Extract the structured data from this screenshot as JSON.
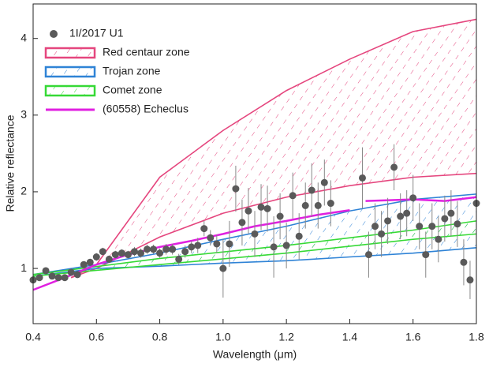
{
  "chart_data": {
    "type": "scatter",
    "xlabel": "Wavelength (μm)",
    "ylabel": "Relative reflectance",
    "xlim": [
      0.4,
      1.8
    ],
    "ylim": [
      0.28,
      4.45
    ],
    "xticks": [
      0.4,
      0.6,
      0.8,
      {
        "value": 1,
        "label": "1.0"
      },
      1.2,
      1.4,
      1.6,
      1.8
    ],
    "yticks": [
      1,
      2,
      3,
      4
    ],
    "legend": "upper left",
    "series": [
      {
        "name": "1I/2017 U1",
        "color": "#5a5a5a",
        "x": [
          0.4,
          0.42,
          0.44,
          0.46,
          0.48,
          0.5,
          0.52,
          0.54,
          0.56,
          0.58,
          0.6,
          0.62,
          0.64,
          0.66,
          0.68,
          0.7,
          0.72,
          0.74,
          0.76,
          0.78,
          0.8,
          0.82,
          0.84,
          0.86,
          0.88,
          0.9,
          0.92,
          0.94,
          0.96,
          0.98,
          1.0,
          1.02,
          1.04,
          1.06,
          1.08,
          1.1,
          1.12,
          1.14,
          1.16,
          1.18,
          1.2,
          1.22,
          1.24,
          1.26,
          1.28,
          1.3,
          1.32,
          1.34,
          1.44,
          1.46,
          1.48,
          1.5,
          1.52,
          1.54,
          1.56,
          1.58,
          1.6,
          1.62,
          1.64,
          1.66,
          1.68,
          1.7,
          1.72,
          1.74,
          1.76,
          1.78,
          1.8
        ],
        "values": [
          0.85,
          0.88,
          0.97,
          0.9,
          0.88,
          0.88,
          0.95,
          0.92,
          1.05,
          1.08,
          1.15,
          1.22,
          1.12,
          1.18,
          1.2,
          1.18,
          1.22,
          1.2,
          1.25,
          1.25,
          1.2,
          1.25,
          1.25,
          1.12,
          1.22,
          1.28,
          1.3,
          1.52,
          1.4,
          1.32,
          1.0,
          1.32,
          2.04,
          1.6,
          1.75,
          1.45,
          1.8,
          1.78,
          1.28,
          1.68,
          1.3,
          1.95,
          1.42,
          1.82,
          2.02,
          1.82,
          2.12,
          1.85,
          2.18,
          1.18,
          1.55,
          1.45,
          1.62,
          2.32,
          1.68,
          1.72,
          1.92,
          1.55,
          1.18,
          1.55,
          1.38,
          1.65,
          1.72,
          1.58,
          1.08,
          0.85,
          1.85
        ],
        "errors": [
          0.03,
          0.03,
          0.03,
          0.03,
          0.03,
          0.03,
          0.03,
          0.03,
          0.04,
          0.04,
          0.05,
          0.05,
          0.05,
          0.05,
          0.05,
          0.05,
          0.06,
          0.06,
          0.06,
          0.06,
          0.06,
          0.07,
          0.07,
          0.07,
          0.08,
          0.08,
          0.1,
          0.1,
          0.1,
          0.12,
          0.38,
          0.3,
          0.3,
          0.3,
          0.3,
          0.3,
          0.3,
          0.3,
          0.4,
          0.3,
          0.3,
          0.3,
          0.3,
          0.3,
          0.35,
          0.3,
          0.3,
          0.3,
          0.4,
          0.3,
          0.3,
          0.3,
          0.3,
          0.3,
          0.3,
          0.3,
          0.3,
          0.3,
          0.3,
          0.3,
          0.3,
          0.3,
          0.3,
          0.3,
          0.3,
          0.25,
          0.25
        ]
      }
    ],
    "zones": [
      {
        "name": "Red centaur zone",
        "color": "#e5467e",
        "x": [
          0.52,
          0.6,
          0.8,
          1.0,
          1.2,
          1.4,
          1.6,
          1.8
        ],
        "upper": [
          0.88,
          1.05,
          2.19,
          2.8,
          3.32,
          3.73,
          4.09,
          4.25
        ],
        "lower": [
          0.88,
          1.0,
          1.41,
          1.72,
          1.93,
          2.08,
          2.19,
          2.24
        ]
      },
      {
        "name": "Trojan zone",
        "color": "#2f83d6",
        "x": [
          0.4,
          0.6,
          0.8,
          1.0,
          1.2,
          1.4,
          1.6,
          1.8
        ],
        "upper": [
          0.92,
          1.05,
          1.2,
          1.38,
          1.55,
          1.75,
          1.9,
          1.97
        ],
        "lower": [
          0.9,
          1.0,
          1.03,
          1.07,
          1.1,
          1.15,
          1.2,
          1.27
        ]
      },
      {
        "name": "Comet zone",
        "color": "#36d936",
        "x": [
          0.4,
          0.8,
          1.2,
          1.6,
          1.8
        ],
        "upper": [
          0.92,
          1.13,
          1.3,
          1.5,
          1.62
        ],
        "lower": [
          0.9,
          1.05,
          1.2,
          1.38,
          1.45
        ]
      }
    ],
    "lines": [
      {
        "name": "(60558) Echeclus",
        "color": "#e020e0",
        "x": [
          0.4,
          0.5,
          0.6,
          0.7,
          0.8,
          0.9,
          1.0,
          1.1,
          1.2,
          1.3,
          1.4,
          1.43,
          1.45,
          1.6,
          1.7,
          1.8
        ],
        "values": [
          0.72,
          0.88,
          1.05,
          1.18,
          1.28,
          1.36,
          1.45,
          1.55,
          1.62,
          1.7,
          1.76,
          null,
          1.88,
          1.9,
          1.88,
          1.93
        ]
      }
    ]
  }
}
